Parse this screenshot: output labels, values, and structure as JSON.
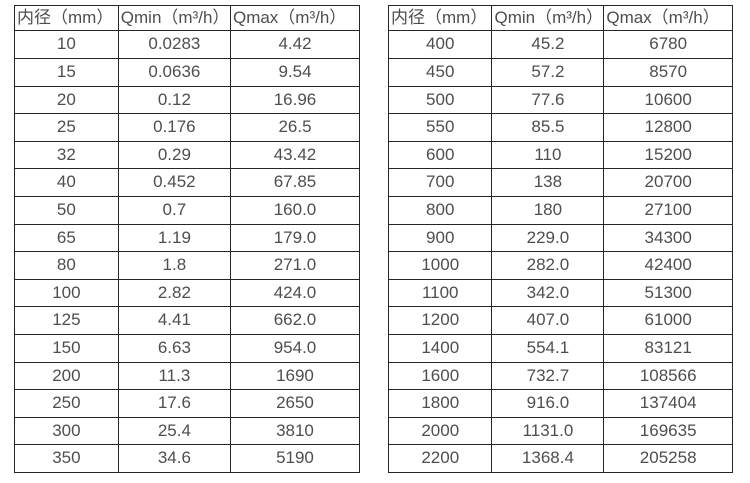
{
  "page": {
    "background_color": "#ffffff",
    "border_color": "#262626",
    "text_color": "#4e4e4e"
  },
  "tables": [
    {
      "name": "flow-table-small-diameters",
      "headers": [
        "内径（mm）",
        "Qmin（m³/h）",
        "Qmax（m³/h）"
      ],
      "rows": [
        [
          "10",
          "0.0283",
          "4.42"
        ],
        [
          "15",
          "0.0636",
          "9.54"
        ],
        [
          "20",
          "0.12",
          "16.96"
        ],
        [
          "25",
          "0.176",
          "26.5"
        ],
        [
          "32",
          "0.29",
          "43.42"
        ],
        [
          "40",
          "0.452",
          "67.85"
        ],
        [
          "50",
          "0.7",
          "160.0"
        ],
        [
          "65",
          "1.19",
          "179.0"
        ],
        [
          "80",
          "1.8",
          "271.0"
        ],
        [
          "100",
          "2.82",
          "424.0"
        ],
        [
          "125",
          "4.41",
          "662.0"
        ],
        [
          "150",
          "6.63",
          "954.0"
        ],
        [
          "200",
          "11.3",
          "1690"
        ],
        [
          "250",
          "17.6",
          "2650"
        ],
        [
          "300",
          "25.4",
          "3810"
        ],
        [
          "350",
          "34.6",
          "5190"
        ]
      ]
    },
    {
      "name": "flow-table-large-diameters",
      "headers": [
        "内径（mm）",
        "Qmin（m³/h）",
        "Qmax（m³/h）"
      ],
      "rows": [
        [
          "400",
          "45.2",
          "6780"
        ],
        [
          "450",
          "57.2",
          "8570"
        ],
        [
          "500",
          "77.6",
          "10600"
        ],
        [
          "550",
          "85.5",
          "12800"
        ],
        [
          "600",
          "110",
          "15200"
        ],
        [
          "700",
          "138",
          "20700"
        ],
        [
          "800",
          "180",
          "27100"
        ],
        [
          "900",
          "229.0",
          "34300"
        ],
        [
          "1000",
          "282.0",
          "42400"
        ],
        [
          "1100",
          "342.0",
          "51300"
        ],
        [
          "1200",
          "407.0",
          "61000"
        ],
        [
          "1400",
          "554.1",
          "83121"
        ],
        [
          "1600",
          "732.7",
          "108566"
        ],
        [
          "1800",
          "916.0",
          "137404"
        ],
        [
          "2000",
          "1131.0",
          "169635"
        ],
        [
          "2200",
          "1368.4",
          "205258"
        ]
      ]
    }
  ]
}
